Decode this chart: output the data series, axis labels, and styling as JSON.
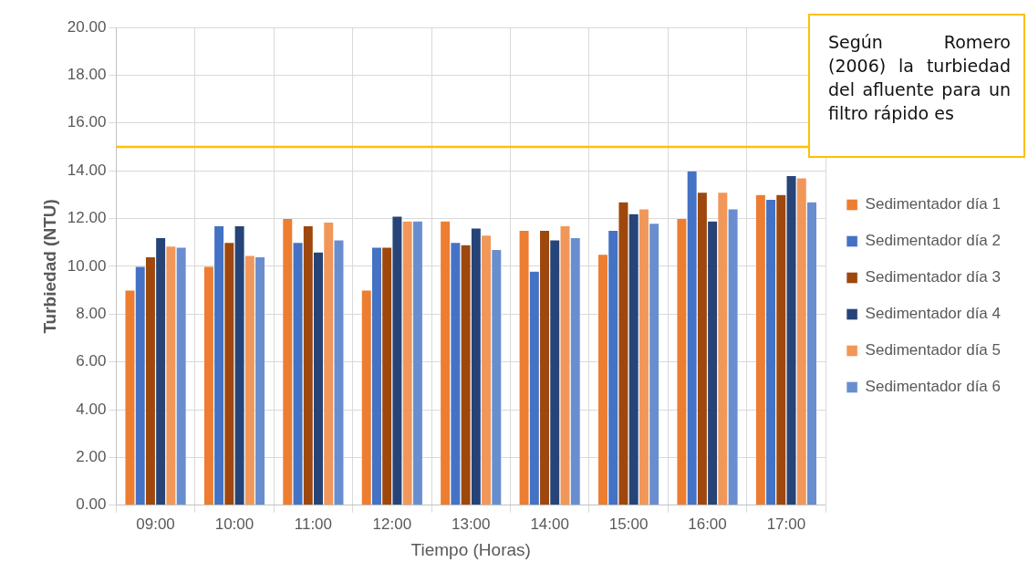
{
  "chart_data": {
    "type": "bar",
    "xlabel": "Tiempo (Horas)",
    "ylabel": "Turbiedad (NTU)",
    "categories": [
      "09:00",
      "10:00",
      "11:00",
      "12:00",
      "13:00",
      "14:00",
      "15:00",
      "16:00",
      "17:00"
    ],
    "series": [
      {
        "name": "Sedimentador día 1",
        "color": "#ed7d31",
        "values": [
          9.0,
          10.0,
          12.0,
          9.0,
          11.9,
          11.5,
          10.5,
          12.0,
          13.0
        ]
      },
      {
        "name": "Sedimentador día 2",
        "color": "#4472c4",
        "values": [
          10.0,
          11.7,
          11.0,
          10.8,
          11.0,
          9.8,
          11.5,
          14.0,
          12.8
        ]
      },
      {
        "name": "Sedimentador día 3",
        "color": "#9e480e",
        "values": [
          10.4,
          11.0,
          11.7,
          10.8,
          10.9,
          11.5,
          12.7,
          13.1,
          13.0
        ]
      },
      {
        "name": "Sedimentador día 4",
        "color": "#264478",
        "values": [
          11.2,
          11.7,
          10.6,
          12.1,
          11.6,
          11.1,
          12.2,
          11.9,
          13.8
        ]
      },
      {
        "name": "Sedimentador día 5",
        "color": "#f1975a",
        "values": [
          10.85,
          10.45,
          11.85,
          11.9,
          11.3,
          11.7,
          12.4,
          13.1,
          13.7
        ]
      },
      {
        "name": "Sedimentador día 6",
        "color": "#698ed0",
        "values": [
          10.8,
          10.4,
          11.1,
          11.9,
          10.7,
          11.2,
          11.8,
          12.4,
          12.7
        ]
      }
    ],
    "ylim": [
      0,
      20
    ],
    "yticks": [
      {
        "value": 0,
        "label": "0.00"
      },
      {
        "value": 2,
        "label": "2.00"
      },
      {
        "value": 4,
        "label": "4.00"
      },
      {
        "value": 6,
        "label": "6.00"
      },
      {
        "value": 8,
        "label": "8.00"
      },
      {
        "value": 10,
        "label": "10.00"
      },
      {
        "value": 12,
        "label": "12.00"
      },
      {
        "value": 14,
        "label": "14.00"
      },
      {
        "value": 16,
        "label": "16.00"
      },
      {
        "value": 18,
        "label": "18.00"
      },
      {
        "value": 20,
        "label": "20.00"
      }
    ],
    "ref_lines": [
      {
        "axis": "y",
        "value": 15,
        "color": "#ffc000"
      }
    ],
    "annotations": [
      "Según Romero (2006) la turbiedad del afluente para un filtro rápido es"
    ],
    "grid": true,
    "legend": "right"
  }
}
